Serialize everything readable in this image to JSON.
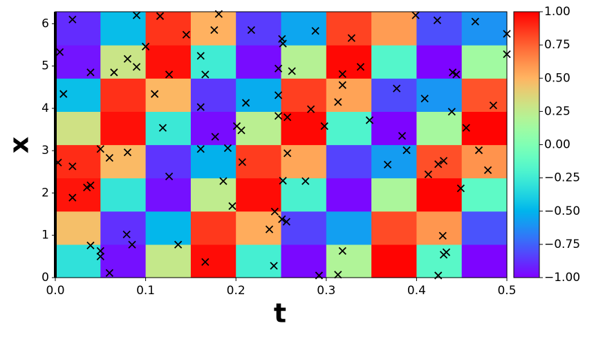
{
  "chart_data": {
    "type": "heatmap",
    "x_label": "t",
    "y_label": "x",
    "xlim": [
      0,
      0.5
    ],
    "ylim": [
      0,
      6.283
    ],
    "xticks": [
      {
        "value": 0,
        "label": "0.0"
      },
      {
        "value": 0.1,
        "label": "0.1"
      },
      {
        "value": 0.2,
        "label": "0.2"
      },
      {
        "value": 0.3,
        "label": "0.3"
      },
      {
        "value": 0.4,
        "label": "0.4"
      },
      {
        "value": 0.5,
        "label": "0.5"
      }
    ],
    "yticks": [
      0,
      1,
      2,
      3,
      4,
      5,
      6
    ],
    "colormap": "rainbow",
    "clim": [
      -1,
      1
    ],
    "cticks": [
      {
        "value": 1,
        "label": "1.00"
      },
      {
        "value": 0.75,
        "label": "0.75"
      },
      {
        "value": 0.5,
        "label": "0.50"
      },
      {
        "value": 0.25,
        "label": "0.25"
      },
      {
        "value": 0,
        "label": "0.00"
      },
      {
        "value": -0.25,
        "label": "−0.25"
      },
      {
        "value": -0.5,
        "label": "−0.50"
      },
      {
        "value": -0.75,
        "label": "−0.75"
      },
      {
        "value": -1,
        "label": "−1.00"
      }
    ],
    "z": [
      [
        -0.31,
        -0.96,
        0.27,
        0.97,
        -0.23,
        -0.98,
        0.19,
        0.99,
        -0.15,
        -0.99
      ],
      [
        0.46,
        -0.88,
        -0.49,
        0.86,
        0.53,
        -0.83,
        -0.57,
        0.81,
        0.6,
        -0.79
      ],
      [
        0.95,
        -0.29,
        -0.96,
        0.25,
        0.97,
        -0.21,
        -0.98,
        0.17,
        0.99,
        -0.13
      ],
      [
        0.89,
        0.48,
        -0.87,
        -0.51,
        0.85,
        0.55,
        -0.83,
        -0.58,
        0.8,
        0.61
      ],
      [
        0.31,
        0.96,
        -0.27,
        -0.97,
        0.23,
        0.98,
        -0.19,
        -0.99,
        0.15,
        0.99
      ],
      [
        -0.46,
        0.88,
        0.49,
        -0.86,
        -0.53,
        0.84,
        0.56,
        -0.81,
        -0.6,
        0.79
      ],
      [
        -0.95,
        0.29,
        0.96,
        -0.25,
        -0.97,
        0.21,
        0.98,
        -0.17,
        -0.99,
        0.13
      ],
      [
        -0.89,
        -0.47,
        0.87,
        0.51,
        -0.85,
        -0.55,
        0.83,
        0.58,
        -0.8,
        -0.61
      ]
    ],
    "points": {
      "marker": "x",
      "color": "#000000",
      "x": [
        0.019,
        0.09,
        0.116,
        0.181,
        0.399,
        0.423,
        0.465,
        0.5,
        0.5,
        0.005,
        0.145,
        0.176,
        0.217,
        0.288,
        0.251,
        0.252,
        0.328,
        0.1,
        0.161,
        0.08,
        0.09,
        0.247,
        0.262,
        0.338,
        0.039,
        0.065,
        0.126,
        0.166,
        0.318,
        0.44,
        0.444,
        0.378,
        0.318,
        0.009,
        0.11,
        0.247,
        0.409,
        0.313,
        0.211,
        0.161,
        0.283,
        0.485,
        0.439,
        0.247,
        0.257,
        0.348,
        0.298,
        0.201,
        0.119,
        0.206,
        0.455,
        0.384,
        0.177,
        0.389,
        0.191,
        0.05,
        0.161,
        0.469,
        0.257,
        0.06,
        0.08,
        0.003,
        0.207,
        0.368,
        0.424,
        0.43,
        0.019,
        0.413,
        0.479,
        0.126,
        0.186,
        0.252,
        0.277,
        0.449,
        0.035,
        0.039,
        0.019,
        0.196,
        0.243,
        0.251,
        0.256,
        0.237,
        0.079,
        0.429,
        0.136,
        0.039,
        0.085,
        0.05,
        0.318,
        0.433,
        0.43,
        0.05,
        0.166,
        0.242,
        0.06,
        0.292,
        0.313,
        0.424
      ],
      "y": [
        6.1,
        6.2,
        6.18,
        6.23,
        6.2,
        6.08,
        6.05,
        5.76,
        5.28,
        5.33,
        5.74,
        5.85,
        5.85,
        5.83,
        5.64,
        5.53,
        5.66,
        5.46,
        5.24,
        5.17,
        4.98,
        4.94,
        4.88,
        4.98,
        4.85,
        4.85,
        4.8,
        4.8,
        4.81,
        4.85,
        4.8,
        4.47,
        4.55,
        4.34,
        4.34,
        4.31,
        4.23,
        4.15,
        4.13,
        4.03,
        3.98,
        4.07,
        3.92,
        3.82,
        3.79,
        3.72,
        3.58,
        3.58,
        3.54,
        3.48,
        3.54,
        3.35,
        3.33,
        3.01,
        3.06,
        3.04,
        3.04,
        3.01,
        2.94,
        2.83,
        2.96,
        2.72,
        2.73,
        2.67,
        2.68,
        2.76,
        2.63,
        2.44,
        2.54,
        2.39,
        2.28,
        2.29,
        2.28,
        2.11,
        2.13,
        2.18,
        1.89,
        1.69,
        1.56,
        1.38,
        1.32,
        1.14,
        1.02,
        0.99,
        0.78,
        0.76,
        0.78,
        0.63,
        0.63,
        0.6,
        0.54,
        0.5,
        0.37,
        0.28,
        0.11,
        0.05,
        0.07,
        0.05
      ]
    }
  }
}
